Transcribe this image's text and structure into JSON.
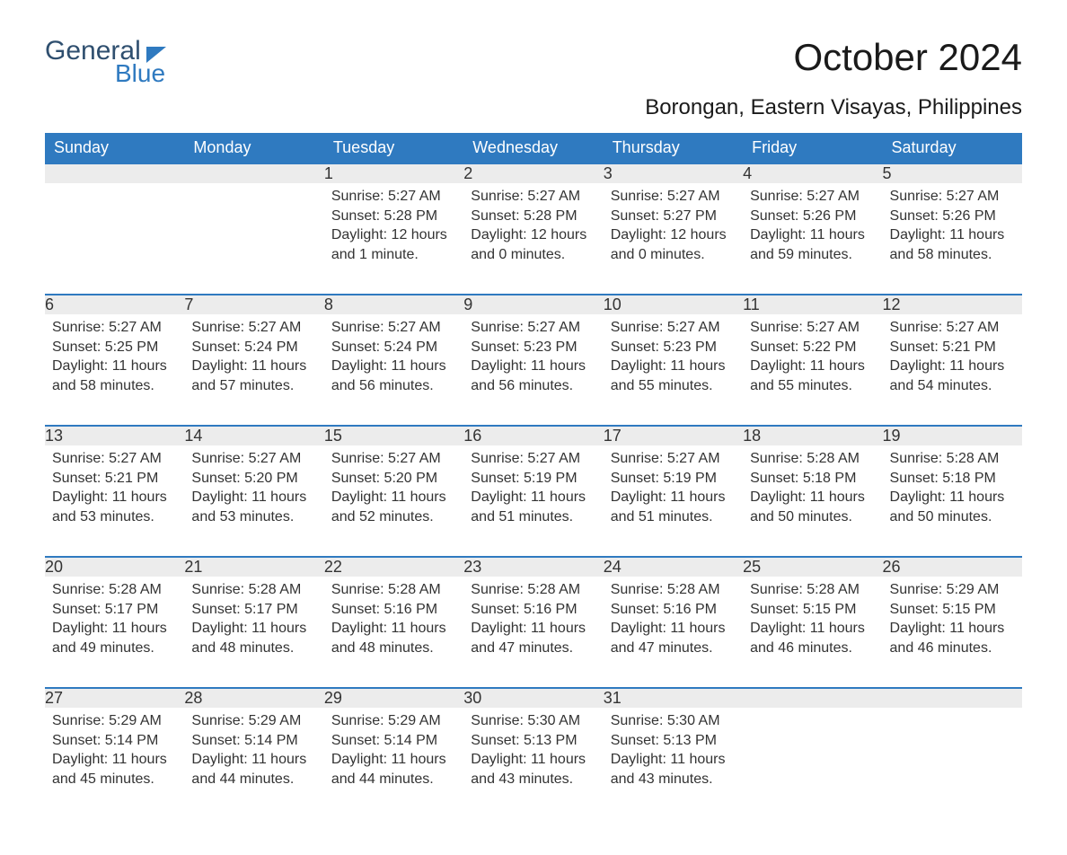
{
  "logo": {
    "text1": "General",
    "text2": "Blue"
  },
  "title": "October 2024",
  "subtitle": "Borongan, Eastern Visayas, Philippines",
  "colors": {
    "header_bg": "#2f7ac0",
    "header_text": "#ffffff",
    "daynum_bg": "#ececec",
    "row_divider": "#2f7ac0",
    "body_text": "#333333",
    "logo_dark": "#2f4f6f",
    "logo_blue": "#2f7ac0",
    "page_bg": "#ffffff"
  },
  "typography": {
    "title_fontsize": 42,
    "subtitle_fontsize": 24,
    "header_fontsize": 18,
    "daynum_fontsize": 18,
    "body_fontsize": 16
  },
  "layout": {
    "columns": 7,
    "rows": 5
  },
  "weekdays": [
    "Sunday",
    "Monday",
    "Tuesday",
    "Wednesday",
    "Thursday",
    "Friday",
    "Saturday"
  ],
  "weeks": [
    [
      null,
      null,
      {
        "n": "1",
        "sunrise": "Sunrise: 5:27 AM",
        "sunset": "Sunset: 5:28 PM",
        "daylight": "Daylight: 12 hours and 1 minute."
      },
      {
        "n": "2",
        "sunrise": "Sunrise: 5:27 AM",
        "sunset": "Sunset: 5:28 PM",
        "daylight": "Daylight: 12 hours and 0 minutes."
      },
      {
        "n": "3",
        "sunrise": "Sunrise: 5:27 AM",
        "sunset": "Sunset: 5:27 PM",
        "daylight": "Daylight: 12 hours and 0 minutes."
      },
      {
        "n": "4",
        "sunrise": "Sunrise: 5:27 AM",
        "sunset": "Sunset: 5:26 PM",
        "daylight": "Daylight: 11 hours and 59 minutes."
      },
      {
        "n": "5",
        "sunrise": "Sunrise: 5:27 AM",
        "sunset": "Sunset: 5:26 PM",
        "daylight": "Daylight: 11 hours and 58 minutes."
      }
    ],
    [
      {
        "n": "6",
        "sunrise": "Sunrise: 5:27 AM",
        "sunset": "Sunset: 5:25 PM",
        "daylight": "Daylight: 11 hours and 58 minutes."
      },
      {
        "n": "7",
        "sunrise": "Sunrise: 5:27 AM",
        "sunset": "Sunset: 5:24 PM",
        "daylight": "Daylight: 11 hours and 57 minutes."
      },
      {
        "n": "8",
        "sunrise": "Sunrise: 5:27 AM",
        "sunset": "Sunset: 5:24 PM",
        "daylight": "Daylight: 11 hours and 56 minutes."
      },
      {
        "n": "9",
        "sunrise": "Sunrise: 5:27 AM",
        "sunset": "Sunset: 5:23 PM",
        "daylight": "Daylight: 11 hours and 56 minutes."
      },
      {
        "n": "10",
        "sunrise": "Sunrise: 5:27 AM",
        "sunset": "Sunset: 5:23 PM",
        "daylight": "Daylight: 11 hours and 55 minutes."
      },
      {
        "n": "11",
        "sunrise": "Sunrise: 5:27 AM",
        "sunset": "Sunset: 5:22 PM",
        "daylight": "Daylight: 11 hours and 55 minutes."
      },
      {
        "n": "12",
        "sunrise": "Sunrise: 5:27 AM",
        "sunset": "Sunset: 5:21 PM",
        "daylight": "Daylight: 11 hours and 54 minutes."
      }
    ],
    [
      {
        "n": "13",
        "sunrise": "Sunrise: 5:27 AM",
        "sunset": "Sunset: 5:21 PM",
        "daylight": "Daylight: 11 hours and 53 minutes."
      },
      {
        "n": "14",
        "sunrise": "Sunrise: 5:27 AM",
        "sunset": "Sunset: 5:20 PM",
        "daylight": "Daylight: 11 hours and 53 minutes."
      },
      {
        "n": "15",
        "sunrise": "Sunrise: 5:27 AM",
        "sunset": "Sunset: 5:20 PM",
        "daylight": "Daylight: 11 hours and 52 minutes."
      },
      {
        "n": "16",
        "sunrise": "Sunrise: 5:27 AM",
        "sunset": "Sunset: 5:19 PM",
        "daylight": "Daylight: 11 hours and 51 minutes."
      },
      {
        "n": "17",
        "sunrise": "Sunrise: 5:27 AM",
        "sunset": "Sunset: 5:19 PM",
        "daylight": "Daylight: 11 hours and 51 minutes."
      },
      {
        "n": "18",
        "sunrise": "Sunrise: 5:28 AM",
        "sunset": "Sunset: 5:18 PM",
        "daylight": "Daylight: 11 hours and 50 minutes."
      },
      {
        "n": "19",
        "sunrise": "Sunrise: 5:28 AM",
        "sunset": "Sunset: 5:18 PM",
        "daylight": "Daylight: 11 hours and 50 minutes."
      }
    ],
    [
      {
        "n": "20",
        "sunrise": "Sunrise: 5:28 AM",
        "sunset": "Sunset: 5:17 PM",
        "daylight": "Daylight: 11 hours and 49 minutes."
      },
      {
        "n": "21",
        "sunrise": "Sunrise: 5:28 AM",
        "sunset": "Sunset: 5:17 PM",
        "daylight": "Daylight: 11 hours and 48 minutes."
      },
      {
        "n": "22",
        "sunrise": "Sunrise: 5:28 AM",
        "sunset": "Sunset: 5:16 PM",
        "daylight": "Daylight: 11 hours and 48 minutes."
      },
      {
        "n": "23",
        "sunrise": "Sunrise: 5:28 AM",
        "sunset": "Sunset: 5:16 PM",
        "daylight": "Daylight: 11 hours and 47 minutes."
      },
      {
        "n": "24",
        "sunrise": "Sunrise: 5:28 AM",
        "sunset": "Sunset: 5:16 PM",
        "daylight": "Daylight: 11 hours and 47 minutes."
      },
      {
        "n": "25",
        "sunrise": "Sunrise: 5:28 AM",
        "sunset": "Sunset: 5:15 PM",
        "daylight": "Daylight: 11 hours and 46 minutes."
      },
      {
        "n": "26",
        "sunrise": "Sunrise: 5:29 AM",
        "sunset": "Sunset: 5:15 PM",
        "daylight": "Daylight: 11 hours and 46 minutes."
      }
    ],
    [
      {
        "n": "27",
        "sunrise": "Sunrise: 5:29 AM",
        "sunset": "Sunset: 5:14 PM",
        "daylight": "Daylight: 11 hours and 45 minutes."
      },
      {
        "n": "28",
        "sunrise": "Sunrise: 5:29 AM",
        "sunset": "Sunset: 5:14 PM",
        "daylight": "Daylight: 11 hours and 44 minutes."
      },
      {
        "n": "29",
        "sunrise": "Sunrise: 5:29 AM",
        "sunset": "Sunset: 5:14 PM",
        "daylight": "Daylight: 11 hours and 44 minutes."
      },
      {
        "n": "30",
        "sunrise": "Sunrise: 5:30 AM",
        "sunset": "Sunset: 5:13 PM",
        "daylight": "Daylight: 11 hours and 43 minutes."
      },
      {
        "n": "31",
        "sunrise": "Sunrise: 5:30 AM",
        "sunset": "Sunset: 5:13 PM",
        "daylight": "Daylight: 11 hours and 43 minutes."
      },
      null,
      null
    ]
  ]
}
